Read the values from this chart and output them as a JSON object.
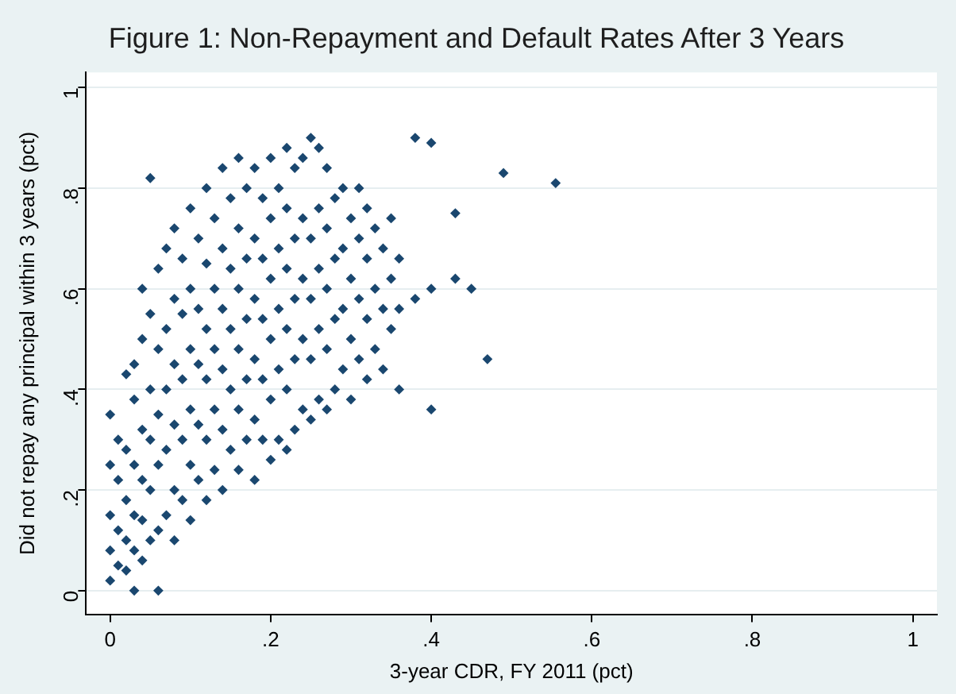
{
  "chart_data": {
    "type": "scatter",
    "title": "Figure 1: Non-Repayment and Default Rates After 3 Years",
    "xlabel": "3-year CDR, FY 2011 (pct)",
    "ylabel": "Did not repay any principal within 3 years (pct)",
    "x": [
      0,
      0,
      0,
      0,
      0,
      0.01,
      0.01,
      0.01,
      0.01,
      0.02,
      0.02,
      0.02,
      0.02,
      0.02,
      0.03,
      0.03,
      0.03,
      0.03,
      0.03,
      0.03,
      0.04,
      0.04,
      0.04,
      0.04,
      0.04,
      0.04,
      0.05,
      0.05,
      0.05,
      0.05,
      0.05,
      0.05,
      0.06,
      0.06,
      0.06,
      0.06,
      0.06,
      0.06,
      0.07,
      0.07,
      0.07,
      0.07,
      0.07,
      0.08,
      0.08,
      0.08,
      0.08,
      0.08,
      0.08,
      0.09,
      0.09,
      0.09,
      0.09,
      0.09,
      0.1,
      0.1,
      0.1,
      0.1,
      0.1,
      0.1,
      0.11,
      0.11,
      0.11,
      0.11,
      0.11,
      0.12,
      0.12,
      0.12,
      0.12,
      0.12,
      0.12,
      0.13,
      0.13,
      0.13,
      0.13,
      0.13,
      0.14,
      0.14,
      0.14,
      0.14,
      0.14,
      0.14,
      0.15,
      0.15,
      0.15,
      0.15,
      0.15,
      0.16,
      0.16,
      0.16,
      0.16,
      0.16,
      0.16,
      0.17,
      0.17,
      0.17,
      0.17,
      0.17,
      0.18,
      0.18,
      0.18,
      0.18,
      0.18,
      0.18,
      0.19,
      0.19,
      0.19,
      0.19,
      0.19,
      0.2,
      0.2,
      0.2,
      0.2,
      0.2,
      0.2,
      0.21,
      0.21,
      0.21,
      0.21,
      0.21,
      0.22,
      0.22,
      0.22,
      0.22,
      0.22,
      0.22,
      0.23,
      0.23,
      0.23,
      0.23,
      0.23,
      0.24,
      0.24,
      0.24,
      0.24,
      0.24,
      0.25,
      0.25,
      0.25,
      0.25,
      0.25,
      0.26,
      0.26,
      0.26,
      0.26,
      0.26,
      0.27,
      0.27,
      0.27,
      0.27,
      0.27,
      0.28,
      0.28,
      0.28,
      0.28,
      0.29,
      0.29,
      0.29,
      0.29,
      0.3,
      0.3,
      0.3,
      0.3,
      0.31,
      0.31,
      0.31,
      0.31,
      0.32,
      0.32,
      0.32,
      0.32,
      0.33,
      0.33,
      0.33,
      0.34,
      0.34,
      0.34,
      0.35,
      0.35,
      0.35,
      0.36,
      0.36,
      0.36,
      0.38,
      0.38,
      0.4,
      0.4,
      0.4,
      0.43,
      0.43,
      0.45,
      0.47,
      0.49,
      0.555
    ],
    "values": [
      0.02,
      0.08,
      0.15,
      0.25,
      0.35,
      0.05,
      0.12,
      0.22,
      0.3,
      0.04,
      0.1,
      0.18,
      0.28,
      0.43,
      0,
      0.08,
      0.15,
      0.25,
      0.38,
      0.45,
      0.06,
      0.14,
      0.22,
      0.32,
      0.5,
      0.6,
      0.1,
      0.2,
      0.3,
      0.4,
      0.55,
      0.82,
      0,
      0.12,
      0.25,
      0.35,
      0.48,
      0.64,
      0.15,
      0.28,
      0.4,
      0.52,
      0.68,
      0.1,
      0.2,
      0.33,
      0.45,
      0.58,
      0.72,
      0.18,
      0.3,
      0.42,
      0.55,
      0.66,
      0.14,
      0.25,
      0.36,
      0.48,
      0.6,
      0.76,
      0.22,
      0.33,
      0.45,
      0.56,
      0.7,
      0.18,
      0.3,
      0.42,
      0.52,
      0.65,
      0.8,
      0.24,
      0.36,
      0.48,
      0.6,
      0.74,
      0.2,
      0.32,
      0.44,
      0.56,
      0.68,
      0.84,
      0.28,
      0.4,
      0.52,
      0.64,
      0.78,
      0.24,
      0.36,
      0.48,
      0.6,
      0.72,
      0.86,
      0.3,
      0.42,
      0.54,
      0.66,
      0.8,
      0.22,
      0.34,
      0.46,
      0.58,
      0.7,
      0.84,
      0.3,
      0.42,
      0.54,
      0.66,
      0.78,
      0.26,
      0.38,
      0.5,
      0.62,
      0.74,
      0.86,
      0.3,
      0.44,
      0.56,
      0.68,
      0.8,
      0.28,
      0.4,
      0.52,
      0.64,
      0.76,
      0.88,
      0.32,
      0.46,
      0.58,
      0.7,
      0.84,
      0.36,
      0.5,
      0.62,
      0.74,
      0.86,
      0.34,
      0.46,
      0.58,
      0.7,
      0.9,
      0.38,
      0.52,
      0.64,
      0.76,
      0.88,
      0.36,
      0.48,
      0.6,
      0.72,
      0.84,
      0.4,
      0.54,
      0.66,
      0.78,
      0.44,
      0.56,
      0.68,
      0.8,
      0.38,
      0.5,
      0.62,
      0.74,
      0.46,
      0.58,
      0.7,
      0.8,
      0.42,
      0.54,
      0.66,
      0.76,
      0.48,
      0.6,
      0.72,
      0.44,
      0.56,
      0.68,
      0.52,
      0.62,
      0.74,
      0.4,
      0.56,
      0.66,
      0.58,
      0.9,
      0.6,
      0.89,
      0.36,
      0.62,
      0.75,
      0.6,
      0.46,
      0.83,
      0.81
    ],
    "color": "#1a476f",
    "marker": "diamond",
    "grid": "y",
    "xlim": [
      -0.03,
      1.03
    ],
    "ylim": [
      -0.047,
      1.03
    ],
    "xticks": [
      0,
      {
        "value": 0.2,
        "label": ".2"
      },
      {
        "value": 0.4,
        "label": ".4"
      },
      {
        "value": 0.6,
        "label": ".6"
      },
      {
        "value": 0.8,
        "label": ".8"
      },
      1
    ],
    "yticks": [
      0,
      {
        "value": 0.2,
        "label": ".2"
      },
      {
        "value": 0.4,
        "label": ".4"
      },
      {
        "value": 0.6,
        "label": ".6"
      },
      {
        "value": 0.8,
        "label": ".8"
      },
      1
    ]
  }
}
